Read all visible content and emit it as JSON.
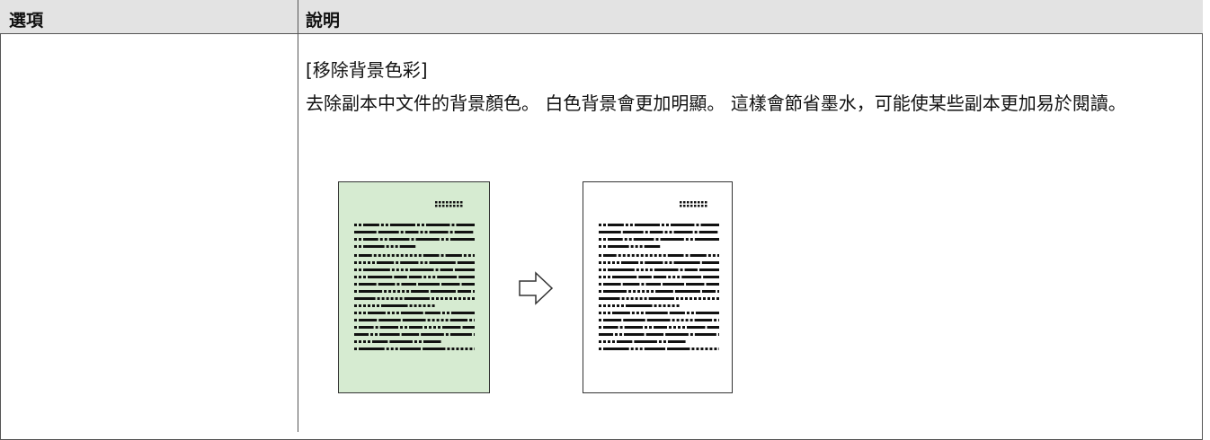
{
  "table": {
    "header": [
      "選項",
      "說明"
    ],
    "rows": [
      {
        "description_title": "[移除背景色彩]",
        "description": "去除副本中文件的背景顏色。 白色背景會更加明顯。 這樣會節省墨水，可能使某些副本更加易於閱讀。"
      }
    ]
  }
}
